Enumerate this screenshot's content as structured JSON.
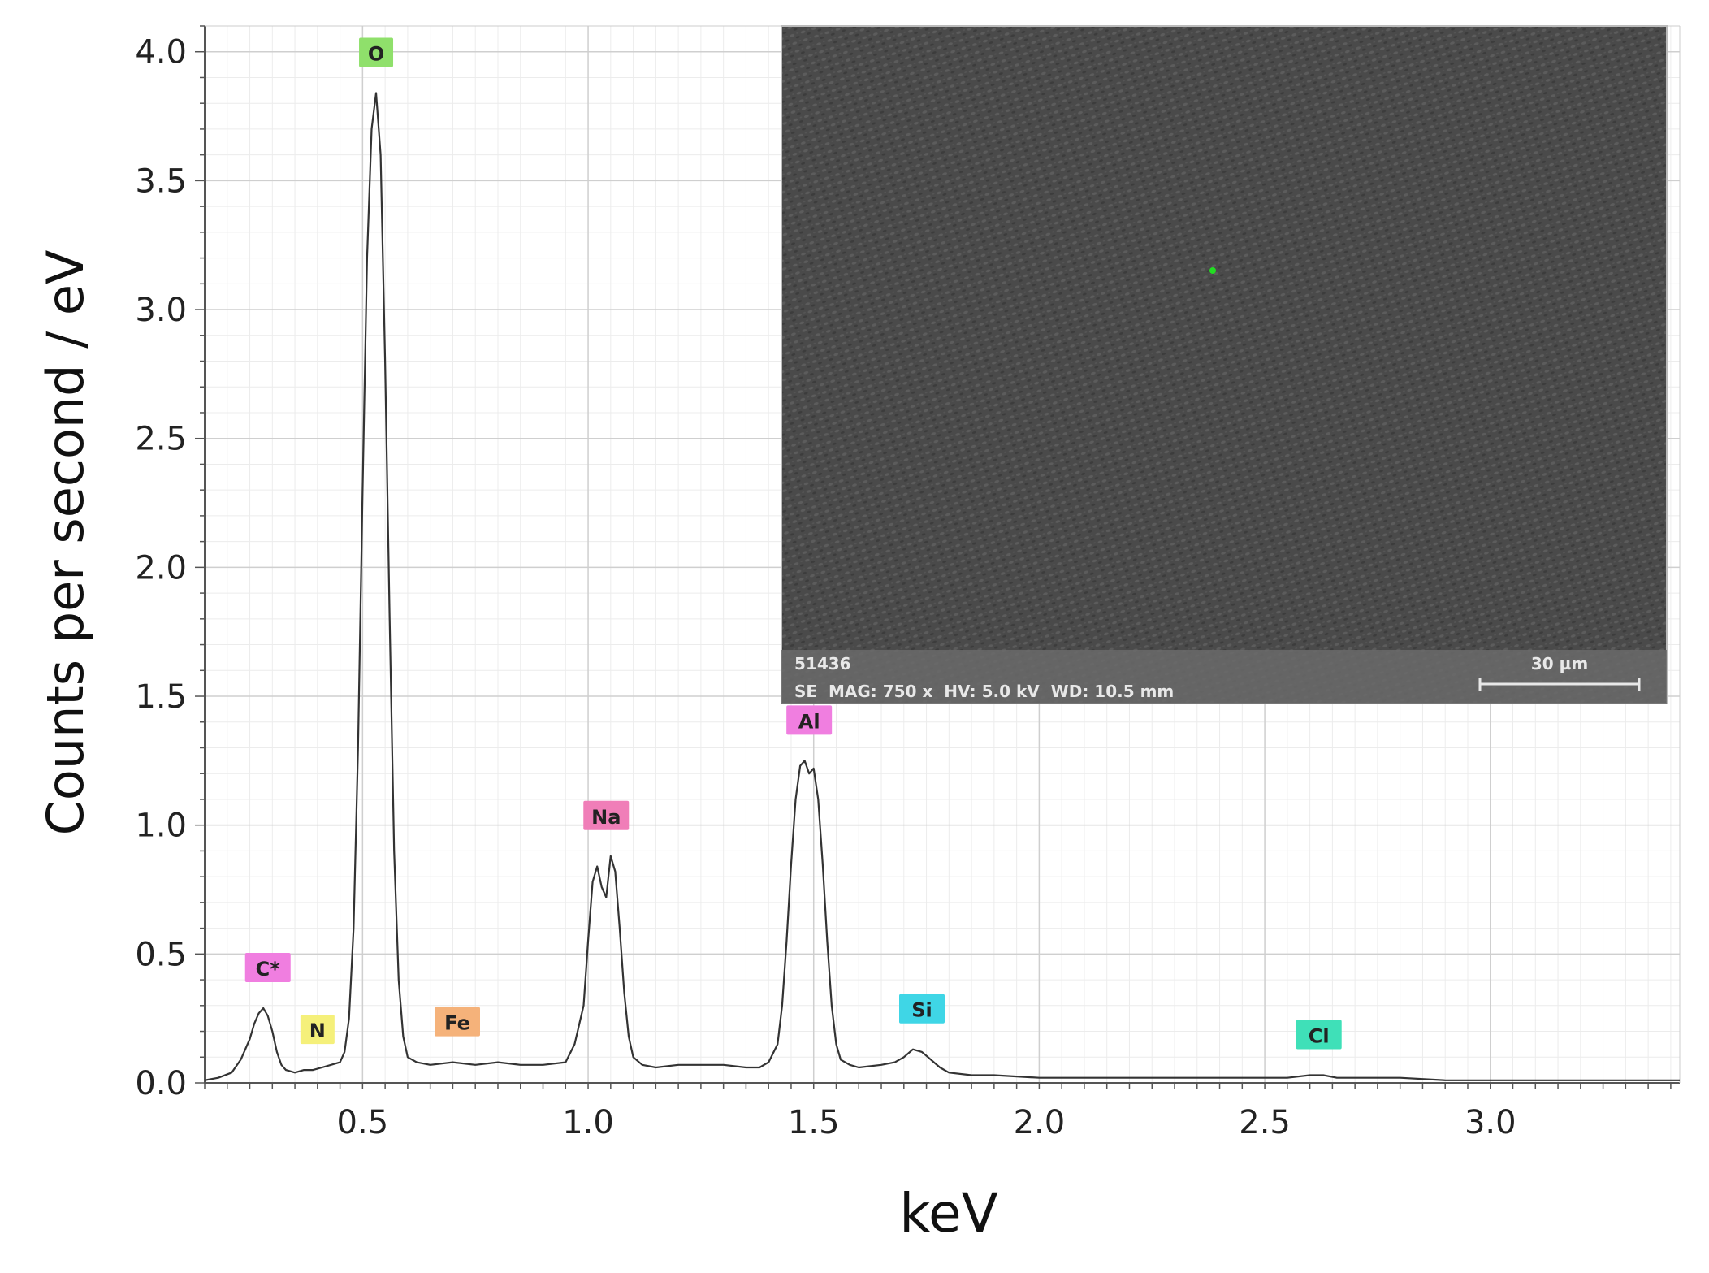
{
  "chart_data": {
    "type": "line",
    "xlabel": "keV",
    "ylabel": "Counts per second / eV",
    "xlim": [
      0.15,
      3.42
    ],
    "ylim": [
      0.0,
      4.1
    ],
    "x_ticks": [
      "0.5",
      "1.0",
      "1.5",
      "2.0",
      "2.5",
      "3.0"
    ],
    "x_tick_values": [
      0.5,
      1.0,
      1.5,
      2.0,
      2.5,
      3.0
    ],
    "y_ticks": [
      "0.0",
      "0.5",
      "1.0",
      "1.5",
      "2.0",
      "2.5",
      "3.0",
      "3.5",
      "4.0"
    ],
    "y_tick_values": [
      0.0,
      0.5,
      1.0,
      1.5,
      2.0,
      2.5,
      3.0,
      3.5,
      4.0
    ],
    "grid": true,
    "series": [
      {
        "color": "#333333",
        "x": [
          0.15,
          0.18,
          0.21,
          0.23,
          0.25,
          0.26,
          0.27,
          0.28,
          0.29,
          0.3,
          0.31,
          0.32,
          0.33,
          0.35,
          0.37,
          0.39,
          0.41,
          0.43,
          0.45,
          0.46,
          0.47,
          0.48,
          0.49,
          0.5,
          0.51,
          0.52,
          0.53,
          0.54,
          0.55,
          0.56,
          0.57,
          0.58,
          0.59,
          0.6,
          0.62,
          0.65,
          0.7,
          0.75,
          0.8,
          0.85,
          0.9,
          0.95,
          0.97,
          0.99,
          1.0,
          1.01,
          1.02,
          1.03,
          1.04,
          1.05,
          1.06,
          1.07,
          1.08,
          1.09,
          1.1,
          1.12,
          1.15,
          1.2,
          1.25,
          1.3,
          1.35,
          1.38,
          1.4,
          1.42,
          1.43,
          1.44,
          1.45,
          1.46,
          1.47,
          1.48,
          1.49,
          1.5,
          1.51,
          1.52,
          1.53,
          1.54,
          1.55,
          1.56,
          1.58,
          1.6,
          1.65,
          1.68,
          1.7,
          1.72,
          1.74,
          1.76,
          1.78,
          1.8,
          1.85,
          1.9,
          2.0,
          2.1,
          2.2,
          2.3,
          2.4,
          2.5,
          2.55,
          2.6,
          2.63,
          2.66,
          2.7,
          2.8,
          2.9,
          3.0,
          3.1,
          3.2,
          3.3,
          3.42
        ],
        "y": [
          0.01,
          0.02,
          0.04,
          0.09,
          0.17,
          0.23,
          0.27,
          0.29,
          0.26,
          0.2,
          0.12,
          0.07,
          0.05,
          0.04,
          0.05,
          0.05,
          0.06,
          0.07,
          0.08,
          0.12,
          0.25,
          0.6,
          1.3,
          2.3,
          3.2,
          3.7,
          3.84,
          3.6,
          2.8,
          1.8,
          0.9,
          0.4,
          0.18,
          0.1,
          0.08,
          0.07,
          0.08,
          0.07,
          0.08,
          0.07,
          0.07,
          0.08,
          0.15,
          0.3,
          0.55,
          0.78,
          0.84,
          0.76,
          0.72,
          0.88,
          0.82,
          0.6,
          0.35,
          0.18,
          0.1,
          0.07,
          0.06,
          0.07,
          0.07,
          0.07,
          0.06,
          0.06,
          0.08,
          0.15,
          0.3,
          0.55,
          0.85,
          1.1,
          1.23,
          1.25,
          1.2,
          1.22,
          1.1,
          0.85,
          0.55,
          0.3,
          0.15,
          0.09,
          0.07,
          0.06,
          0.07,
          0.08,
          0.1,
          0.13,
          0.12,
          0.09,
          0.06,
          0.04,
          0.03,
          0.03,
          0.02,
          0.02,
          0.02,
          0.02,
          0.02,
          0.02,
          0.02,
          0.03,
          0.03,
          0.02,
          0.02,
          0.02,
          0.01,
          0.01,
          0.01,
          0.01,
          0.01,
          0.01
        ]
      }
    ],
    "peak_labels": [
      {
        "label": "C*",
        "x": 0.29,
        "y": 0.29,
        "color": "#f07ee0"
      },
      {
        "label": "N",
        "x": 0.4,
        "y": 0.05,
        "color": "#f5f07a"
      },
      {
        "label": "O",
        "x": 0.53,
        "y": 3.84,
        "color": "#8fe06b"
      },
      {
        "label": "Fe",
        "x": 0.71,
        "y": 0.08,
        "color": "#f5b27a"
      },
      {
        "label": "Na",
        "x": 1.04,
        "y": 0.88,
        "color": "#f07eb8"
      },
      {
        "label": "Al",
        "x": 1.49,
        "y": 1.25,
        "color": "#f07ee0"
      },
      {
        "label": "Si",
        "x": 1.74,
        "y": 0.13,
        "color": "#3fd6e6"
      },
      {
        "label": "Cl",
        "x": 2.62,
        "y": 0.03,
        "color": "#3fe0b8"
      }
    ]
  },
  "inset": {
    "sample_id": "51436",
    "info_line": "SE  MAG: 750 x  HV: 5.0 kV  WD: 10.5 mm",
    "scale_label": "30 µm"
  }
}
